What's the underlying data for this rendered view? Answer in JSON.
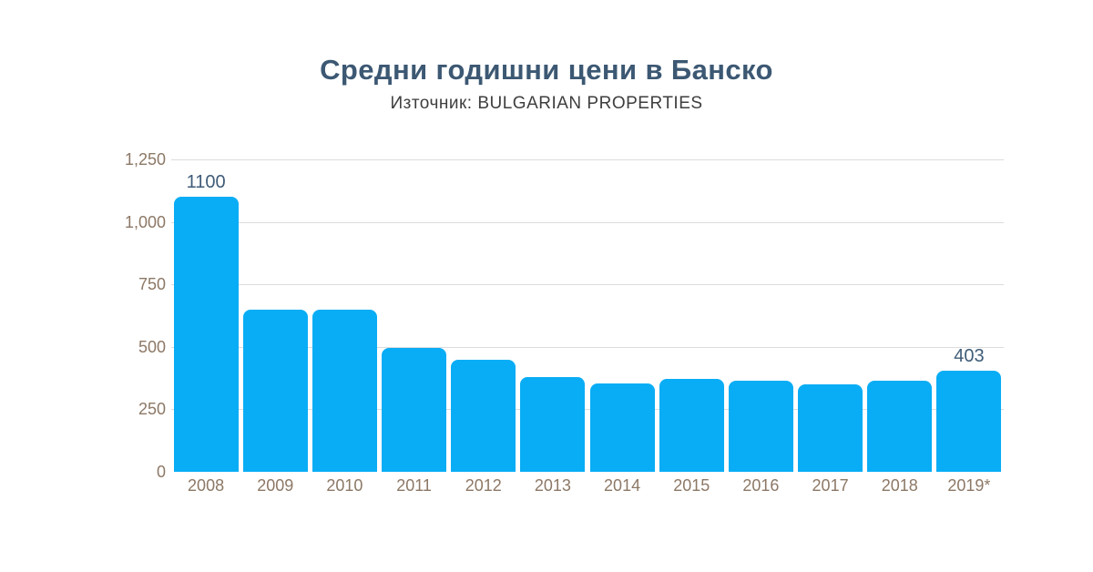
{
  "header": {
    "title": "Средни годишни цени в Банско",
    "subtitle": "Източник: BULGARIAN PROPERTIES"
  },
  "chart_data": {
    "type": "bar",
    "title": "Средни годишни цени в Банско",
    "subtitle": "Източник: BULGARIAN PROPERTIES",
    "categories": [
      "2008",
      "2009",
      "2010",
      "2011",
      "2012",
      "2013",
      "2014",
      "2015",
      "2016",
      "2017",
      "2018",
      "2019*"
    ],
    "values": [
      1100,
      650,
      650,
      495,
      450,
      380,
      355,
      370,
      365,
      350,
      365,
      403
    ],
    "value_labels": [
      "1100",
      null,
      null,
      null,
      null,
      null,
      null,
      null,
      null,
      null,
      null,
      "403"
    ],
    "xlabel": "",
    "ylabel": "",
    "ylim": [
      0,
      1250
    ],
    "yticks": [
      0,
      250,
      500,
      750,
      1000,
      1250
    ],
    "ytick_labels": [
      "0",
      "250",
      "500",
      "750",
      "1,000",
      "1,250"
    ],
    "grid": "horizontal-only",
    "legend": "none"
  },
  "colors": {
    "bar": "#09ADF5",
    "title": "#3C5873",
    "subtitle": "#3E3E3E",
    "value_label": "#3F5C78",
    "axis_label": "#8C7866",
    "gridline": "#DCDCDC",
    "background": "#FFFFFF"
  }
}
